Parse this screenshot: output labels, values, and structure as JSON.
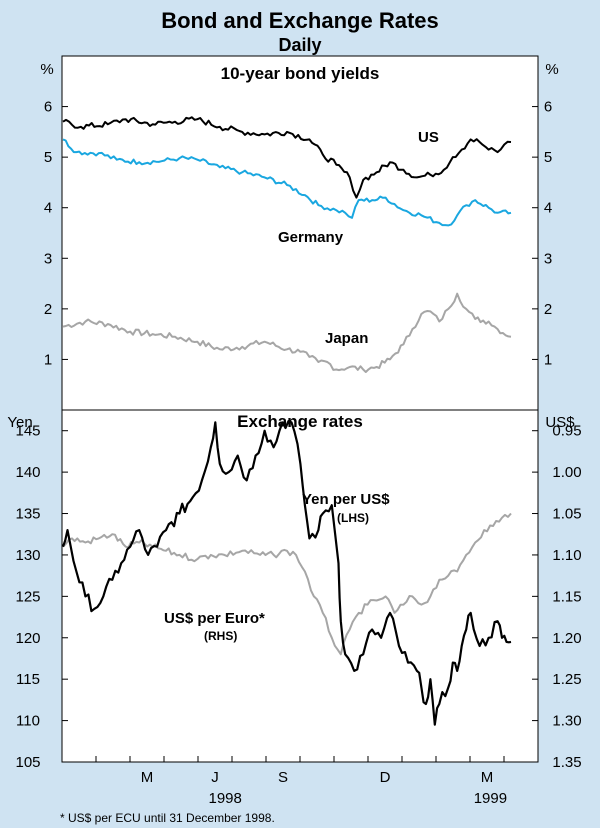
{
  "title": "Bond and Exchange Rates",
  "subtitle": "Daily",
  "footnote": "* US$ per ECU until 31 December 1998.",
  "colors": {
    "background": "#cfe3f2",
    "panel": "#ffffff",
    "us": "#000000",
    "germany": "#1aa7e0",
    "japan": "#a6a6a6",
    "yen": "#000000",
    "euro": "#a6a6a6"
  },
  "chart_data": [
    {
      "type": "line",
      "title": "10-year bond yields",
      "ylabel_left": "%",
      "ylabel_right": "%",
      "ylim": [
        0,
        7
      ],
      "yticks": [
        1,
        2,
        3,
        4,
        5,
        6
      ],
      "x_range": [
        "1998-03-01",
        "1999-04-30"
      ],
      "series": [
        {
          "name": "US",
          "label": "US",
          "points": [
            [
              0,
              5.7
            ],
            [
              0.04,
              5.6
            ],
            [
              0.1,
              5.65
            ],
            [
              0.14,
              5.75
            ],
            [
              0.2,
              5.65
            ],
            [
              0.25,
              5.7
            ],
            [
              0.3,
              5.75
            ],
            [
              0.35,
              5.6
            ],
            [
              0.4,
              5.5
            ],
            [
              0.45,
              5.45
            ],
            [
              0.5,
              5.5
            ],
            [
              0.55,
              5.35
            ],
            [
              0.58,
              5.05
            ],
            [
              0.61,
              4.85
            ],
            [
              0.64,
              4.6
            ],
            [
              0.655,
              4.2
            ],
            [
              0.67,
              4.55
            ],
            [
              0.7,
              4.7
            ],
            [
              0.73,
              4.9
            ],
            [
              0.76,
              4.75
            ],
            [
              0.79,
              4.6
            ],
            [
              0.82,
              4.65
            ],
            [
              0.85,
              4.75
            ],
            [
              0.87,
              5.0
            ],
            [
              0.89,
              5.15
            ],
            [
              0.91,
              5.35
            ],
            [
              0.93,
              5.3
            ],
            [
              0.95,
              5.15
            ],
            [
              0.97,
              5.1
            ],
            [
              0.985,
              5.25
            ],
            [
              1.0,
              5.3
            ]
          ]
        },
        {
          "name": "Germany",
          "label": "Germany",
          "points": [
            [
              0,
              5.35
            ],
            [
              0.03,
              5.1
            ],
            [
              0.08,
              5.08
            ],
            [
              0.12,
              4.95
            ],
            [
              0.17,
              4.9
            ],
            [
              0.22,
              4.92
            ],
            [
              0.26,
              4.98
            ],
            [
              0.3,
              4.95
            ],
            [
              0.35,
              4.8
            ],
            [
              0.4,
              4.7
            ],
            [
              0.45,
              4.6
            ],
            [
              0.5,
              4.45
            ],
            [
              0.54,
              4.25
            ],
            [
              0.57,
              4.05
            ],
            [
              0.61,
              3.95
            ],
            [
              0.63,
              3.9
            ],
            [
              0.645,
              3.8
            ],
            [
              0.66,
              4.15
            ],
            [
              0.69,
              4.15
            ],
            [
              0.72,
              4.2
            ],
            [
              0.76,
              3.95
            ],
            [
              0.8,
              3.85
            ],
            [
              0.84,
              3.7
            ],
            [
              0.86,
              3.65
            ],
            [
              0.88,
              3.85
            ],
            [
              0.9,
              4.05
            ],
            [
              0.92,
              4.15
            ],
            [
              0.95,
              4.0
            ],
            [
              0.97,
              3.9
            ],
            [
              1.0,
              3.9
            ]
          ]
        },
        {
          "name": "Japan",
          "label": "Japan",
          "points": [
            [
              0,
              1.65
            ],
            [
              0.05,
              1.75
            ],
            [
              0.1,
              1.7
            ],
            [
              0.15,
              1.55
            ],
            [
              0.2,
              1.5
            ],
            [
              0.25,
              1.45
            ],
            [
              0.3,
              1.35
            ],
            [
              0.35,
              1.2
            ],
            [
              0.4,
              1.25
            ],
            [
              0.45,
              1.35
            ],
            [
              0.5,
              1.2
            ],
            [
              0.53,
              1.15
            ],
            [
              0.55,
              1.05
            ],
            [
              0.57,
              0.95
            ],
            [
              0.59,
              0.95
            ],
            [
              0.61,
              0.8
            ],
            [
              0.64,
              0.85
            ],
            [
              0.67,
              0.8
            ],
            [
              0.7,
              0.85
            ],
            [
              0.73,
              1.0
            ],
            [
              0.76,
              1.3
            ],
            [
              0.78,
              1.6
            ],
            [
              0.8,
              1.9
            ],
            [
              0.82,
              1.95
            ],
            [
              0.84,
              1.75
            ],
            [
              0.86,
              2.0
            ],
            [
              0.88,
              2.3
            ],
            [
              0.9,
              2.0
            ],
            [
              0.92,
              1.8
            ],
            [
              0.95,
              1.75
            ],
            [
              0.97,
              1.6
            ],
            [
              1.0,
              1.45
            ]
          ]
        }
      ]
    },
    {
      "type": "line",
      "title": "Exchange rates",
      "ylabel_left": "Yen",
      "ylabel_right": "US$",
      "ylim_left": [
        105,
        147.5
      ],
      "yticks_left": [
        105,
        110,
        115,
        120,
        125,
        130,
        135,
        140,
        145
      ],
      "ylim_right": [
        1.35,
        0.925
      ],
      "yticks_right": [
        "0.95",
        "1.00",
        "1.05",
        "1.10",
        "1.15",
        "1.20",
        "1.25",
        "1.30",
        "1.35"
      ],
      "xticks": [
        "M",
        "J",
        "S",
        "D",
        "M"
      ],
      "xyears": [
        "1998",
        "1999"
      ],
      "x_range": [
        "1998-03-01",
        "1999-04-30"
      ],
      "series": [
        {
          "name": "Yen per US$",
          "label": "Yen per US$",
          "sublabel": "(LHS)",
          "axis": "left",
          "points": [
            [
              0,
              131
            ],
            [
              0.01,
              133
            ],
            [
              0.03,
              128
            ],
            [
              0.05,
              125
            ],
            [
              0.07,
              123.5
            ],
            [
              0.09,
              125
            ],
            [
              0.11,
              127
            ],
            [
              0.13,
              129
            ],
            [
              0.15,
              131
            ],
            [
              0.17,
              133
            ],
            [
              0.19,
              130
            ],
            [
              0.21,
              131
            ],
            [
              0.23,
              133
            ],
            [
              0.26,
              135
            ],
            [
              0.29,
              137
            ],
            [
              0.31,
              139
            ],
            [
              0.33,
              143
            ],
            [
              0.34,
              146
            ],
            [
              0.35,
              141
            ],
            [
              0.37,
              140
            ],
            [
              0.39,
              142
            ],
            [
              0.41,
              139
            ],
            [
              0.43,
              142
            ],
            [
              0.45,
              145
            ],
            [
              0.47,
              143
            ],
            [
              0.49,
              146
            ],
            [
              0.51,
              146
            ],
            [
              0.53,
              141
            ],
            [
              0.54,
              136
            ],
            [
              0.55,
              132
            ],
            [
              0.57,
              133
            ],
            [
              0.58,
              135
            ],
            [
              0.6,
              136
            ],
            [
              0.615,
              129
            ],
            [
              0.62,
              122
            ],
            [
              0.63,
              118
            ],
            [
              0.65,
              116
            ],
            [
              0.67,
              118
            ],
            [
              0.69,
              121
            ],
            [
              0.71,
              120
            ],
            [
              0.73,
              123
            ],
            [
              0.75,
              119
            ],
            [
              0.77,
              117
            ],
            [
              0.79,
              116
            ],
            [
              0.8,
              114
            ],
            [
              0.81,
              112
            ],
            [
              0.82,
              115
            ],
            [
              0.83,
              109.5
            ],
            [
              0.84,
              112
            ],
            [
              0.86,
              114
            ],
            [
              0.87,
              117
            ],
            [
              0.88,
              116
            ],
            [
              0.89,
              119
            ],
            [
              0.9,
              121
            ],
            [
              0.91,
              123
            ],
            [
              0.93,
              119
            ],
            [
              0.95,
              120
            ],
            [
              0.97,
              122
            ],
            [
              0.98,
              120
            ],
            [
              0.99,
              119.5
            ],
            [
              1.0,
              119.5
            ]
          ]
        },
        {
          "name": "US$ per Euro*",
          "label": "US$ per Euro*",
          "sublabel": "(RHS)",
          "axis": "right",
          "points": [
            [
              0,
              1.09
            ],
            [
              0.02,
              1.08
            ],
            [
              0.05,
              1.085
            ],
            [
              0.08,
              1.08
            ],
            [
              0.11,
              1.075
            ],
            [
              0.14,
              1.09
            ],
            [
              0.17,
              1.085
            ],
            [
              0.2,
              1.09
            ],
            [
              0.23,
              1.095
            ],
            [
              0.26,
              1.1
            ],
            [
              0.3,
              1.105
            ],
            [
              0.33,
              1.1
            ],
            [
              0.36,
              1.1
            ],
            [
              0.4,
              1.095
            ],
            [
              0.44,
              1.1
            ],
            [
              0.47,
              1.1
            ],
            [
              0.5,
              1.095
            ],
            [
              0.52,
              1.1
            ],
            [
              0.54,
              1.12
            ],
            [
              0.56,
              1.15
            ],
            [
              0.58,
              1.17
            ],
            [
              0.6,
              1.2
            ],
            [
              0.62,
              1.22
            ],
            [
              0.64,
              1.19
            ],
            [
              0.66,
              1.17
            ],
            [
              0.68,
              1.16
            ],
            [
              0.7,
              1.155
            ],
            [
              0.72,
              1.15
            ],
            [
              0.74,
              1.17
            ],
            [
              0.76,
              1.16
            ],
            [
              0.78,
              1.15
            ],
            [
              0.8,
              1.16
            ],
            [
              0.82,
              1.15
            ],
            [
              0.84,
              1.13
            ],
            [
              0.86,
              1.125
            ],
            [
              0.88,
              1.12
            ],
            [
              0.9,
              1.1
            ],
            [
              0.92,
              1.085
            ],
            [
              0.94,
              1.07
            ],
            [
              0.96,
              1.065
            ],
            [
              0.98,
              1.055
            ],
            [
              1.0,
              1.05
            ]
          ]
        }
      ]
    }
  ]
}
